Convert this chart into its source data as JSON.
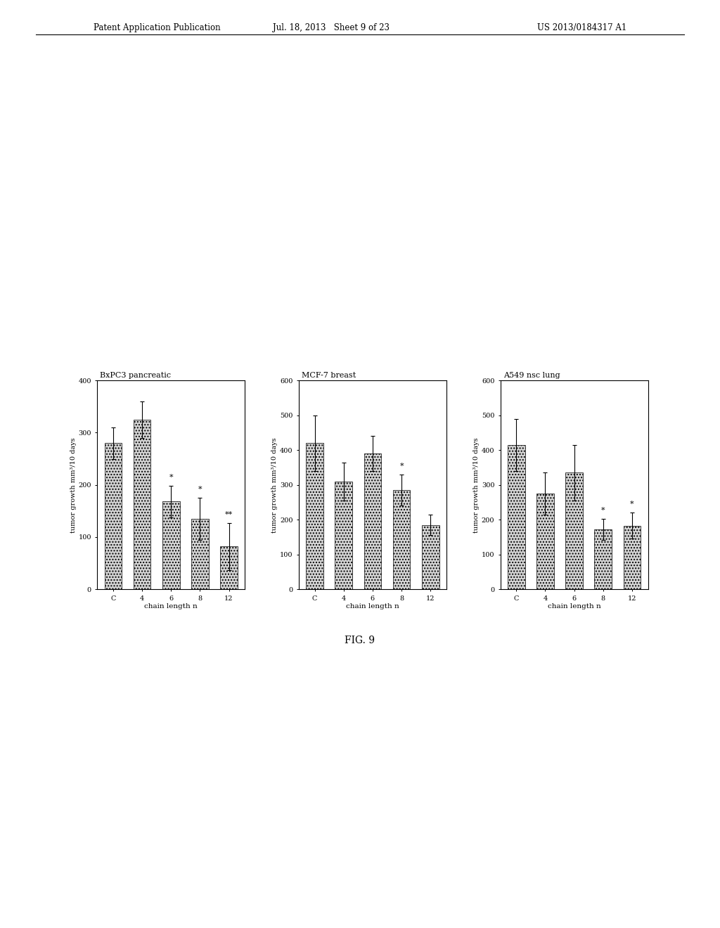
{
  "charts": [
    {
      "title": "BxPC3 pancreatic",
      "ylabel": "tumor growth mm³/10 days",
      "xlabel": "chain length n",
      "categories": [
        "C",
        "4",
        "6",
        "8",
        "12"
      ],
      "values": [
        280,
        325,
        168,
        135,
        82
      ],
      "errors": [
        30,
        35,
        30,
        40,
        45
      ],
      "ylim": [
        0,
        400
      ],
      "yticks": [
        0,
        100,
        200,
        300,
        400
      ],
      "significance": [
        "",
        "",
        "*",
        "*",
        "**"
      ]
    },
    {
      "title": "MCF-7 breast",
      "ylabel": "tumor growth mm³/10 days",
      "xlabel": "chain length n",
      "categories": [
        "C",
        "4",
        "6",
        "8",
        "12"
      ],
      "values": [
        420,
        310,
        390,
        285,
        185
      ],
      "errors": [
        80,
        55,
        50,
        45,
        30
      ],
      "ylim": [
        0,
        600
      ],
      "yticks": [
        0,
        100,
        200,
        300,
        400,
        500,
        600
      ],
      "significance": [
        "",
        "",
        "",
        "*",
        ""
      ]
    },
    {
      "title": "A549 nsc lung",
      "ylabel": "tumor growth mm³/10 days",
      "xlabel": "chain length n",
      "categories": [
        "C",
        "4",
        "6",
        "8",
        "12"
      ],
      "values": [
        415,
        275,
        335,
        172,
        183
      ],
      "errors": [
        75,
        60,
        80,
        30,
        38
      ],
      "ylim": [
        0,
        600
      ],
      "yticks": [
        0,
        100,
        200,
        300,
        400,
        500,
        600
      ],
      "significance": [
        "",
        "",
        "",
        "*",
        "*"
      ]
    }
  ],
  "fig_label": "FIG. 9",
  "header_left": "Patent Application Publication",
  "header_center": "Jul. 18, 2013   Sheet 9 of 23",
  "header_right": "US 2013/0184317 A1",
  "bar_facecolor": "#d4d4d4",
  "bar_hatch": "....",
  "background_color": "#ffffff"
}
